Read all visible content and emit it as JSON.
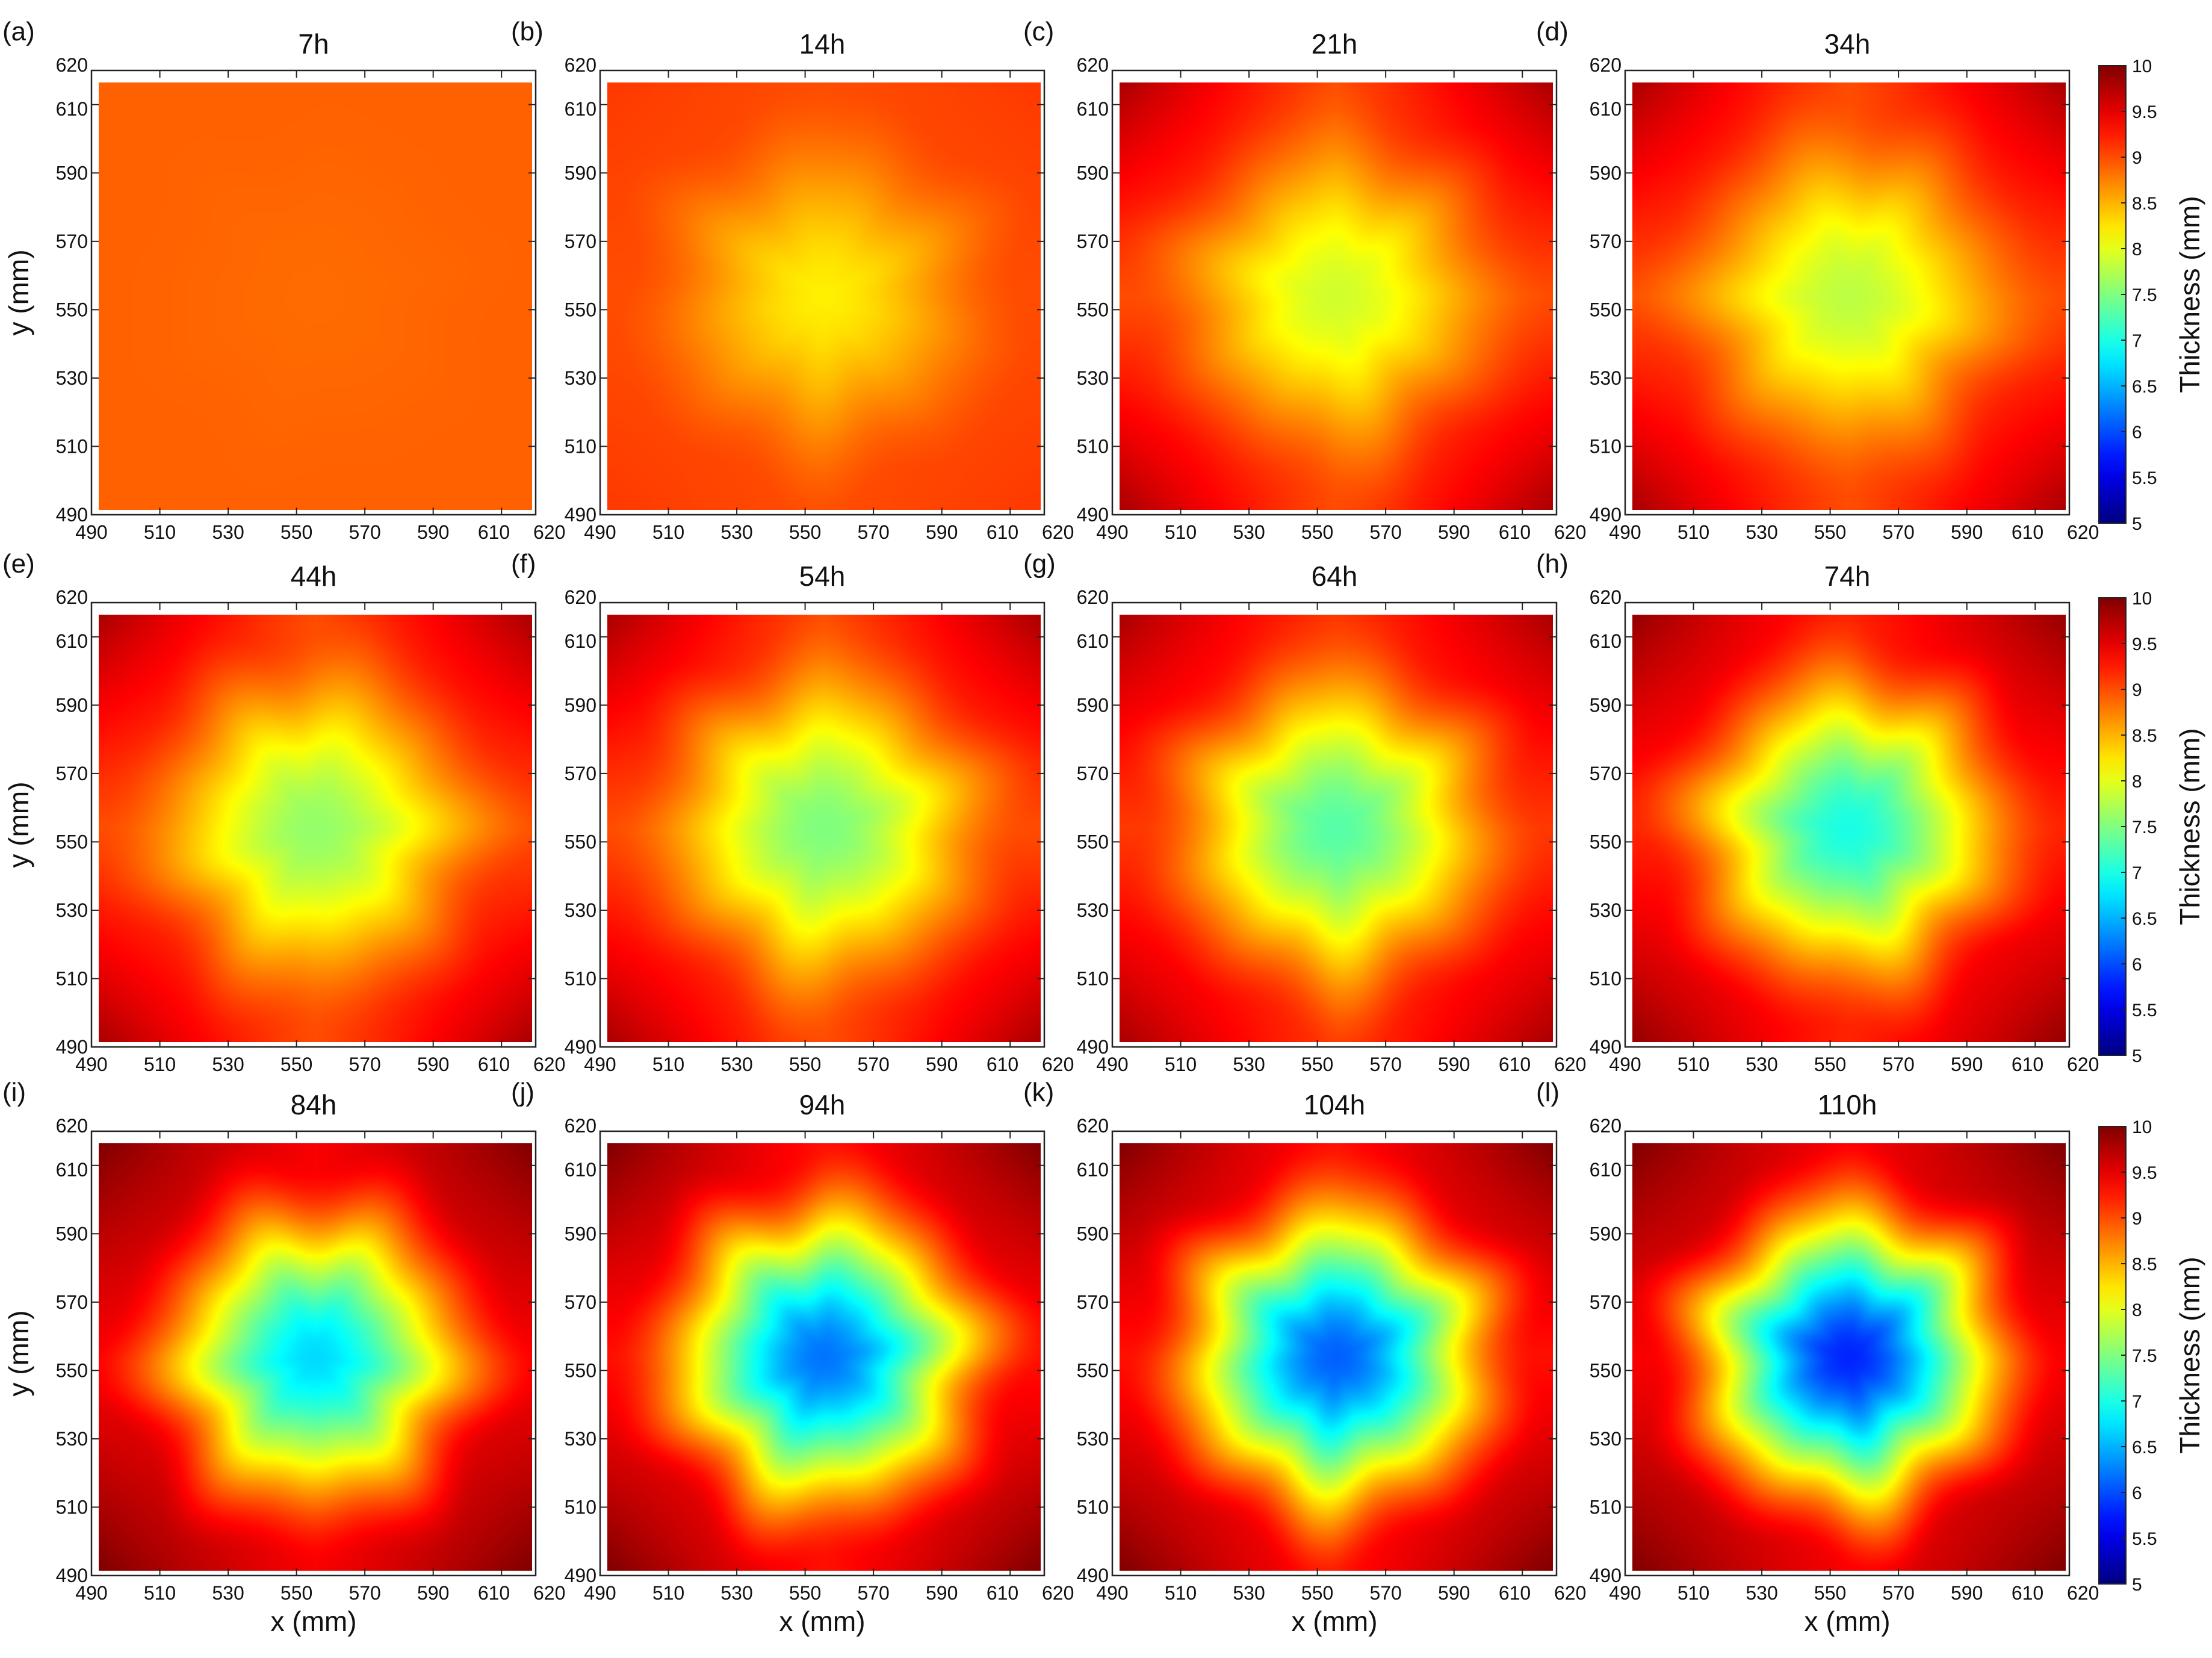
{
  "chart_data": {
    "type": "heatmap",
    "colormap": "jet",
    "x_axis": {
      "label": "x (mm)",
      "range": [
        490,
        620
      ],
      "ticks": [
        490,
        510,
        530,
        550,
        570,
        590,
        610,
        620
      ],
      "tick_labels": [
        "490",
        "510",
        "530",
        "550",
        "570",
        "590",
        "610",
        "620"
      ]
    },
    "y_axis": {
      "label": "y (mm)",
      "range": [
        490,
        620
      ],
      "ticks": [
        490,
        510,
        530,
        550,
        570,
        590,
        610,
        620
      ],
      "tick_labels": [
        "490",
        "510",
        "530",
        "550",
        "570",
        "590",
        "610",
        "620"
      ]
    },
    "colorbar": {
      "label": "Thickness (mm)",
      "range": [
        5,
        10
      ],
      "ticks": [
        5,
        5.5,
        6,
        6.5,
        7,
        7.5,
        8,
        8.5,
        9,
        9.5,
        10
      ],
      "tick_labels": [
        "5",
        "5.5",
        "6",
        "6.5",
        "7",
        "7.5",
        "8",
        "8.5",
        "9",
        "9.5",
        "10"
      ]
    },
    "panels": [
      {
        "label": "(a)",
        "title": "7h",
        "center_thickness": 8.85,
        "edge_thickness": 8.9,
        "corner_thickness": 8.9
      },
      {
        "label": "(b)",
        "title": "14h",
        "center_thickness": 8.2,
        "edge_thickness": 9.0,
        "corner_thickness": 9.1
      },
      {
        "label": "(c)",
        "title": "21h",
        "center_thickness": 7.9,
        "edge_thickness": 9.0,
        "corner_thickness": 9.8
      },
      {
        "label": "(d)",
        "title": "34h",
        "center_thickness": 7.8,
        "edge_thickness": 9.0,
        "corner_thickness": 9.8
      },
      {
        "label": "(e)",
        "title": "44h",
        "center_thickness": 7.6,
        "edge_thickness": 9.0,
        "corner_thickness": 9.8
      },
      {
        "label": "(f)",
        "title": "54h",
        "center_thickness": 7.5,
        "edge_thickness": 9.0,
        "corner_thickness": 9.8
      },
      {
        "label": "(g)",
        "title": "64h",
        "center_thickness": 7.3,
        "edge_thickness": 9.1,
        "corner_thickness": 9.8
      },
      {
        "label": "(h)",
        "title": "74h",
        "center_thickness": 7.0,
        "edge_thickness": 9.2,
        "corner_thickness": 9.9
      },
      {
        "label": "(i)",
        "title": "84h",
        "center_thickness": 6.7,
        "edge_thickness": 9.4,
        "corner_thickness": 10.0
      },
      {
        "label": "(j)",
        "title": "94h",
        "center_thickness": 6.2,
        "edge_thickness": 9.3,
        "corner_thickness": 10.0
      },
      {
        "label": "(k)",
        "title": "104h",
        "center_thickness": 6.1,
        "edge_thickness": 9.3,
        "corner_thickness": 10.0
      },
      {
        "label": "(l)",
        "title": "110h",
        "center_thickness": 5.8,
        "edge_thickness": 9.4,
        "corner_thickness": 10.0
      }
    ]
  }
}
